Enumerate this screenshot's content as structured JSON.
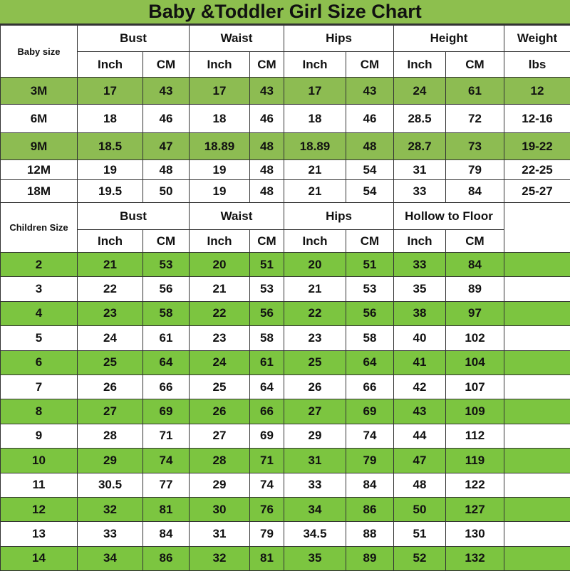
{
  "title": "Baby &Toddler Girl Size Chart",
  "colors": {
    "title_bg": "#8dbf4e",
    "baby_row_green": "#8dbc52",
    "children_row_green": "#7cc540"
  },
  "chart_data": {
    "type": "table",
    "title": "Baby &Toddler Girl Size Chart",
    "baby": {
      "size_label": "Baby size",
      "groups": [
        "Bust",
        "Waist",
        "Hips",
        "Height",
        "Weight"
      ],
      "units": [
        "Inch",
        "CM",
        "Inch",
        "CM",
        "Inch",
        "CM",
        "Inch",
        "CM",
        "lbs"
      ],
      "rows": [
        [
          "3M",
          "17",
          "43",
          "17",
          "43",
          "17",
          "43",
          "24",
          "61",
          "12"
        ],
        [
          "6M",
          "18",
          "46",
          "18",
          "46",
          "18",
          "46",
          "28.5",
          "72",
          "12-16"
        ],
        [
          "9M",
          "18.5",
          "47",
          "18.89",
          "48",
          "18.89",
          "48",
          "28.7",
          "73",
          "19-22"
        ],
        [
          "12M",
          "19",
          "48",
          "19",
          "48",
          "21",
          "54",
          "31",
          "79",
          "22-25"
        ],
        [
          "18M",
          "19.5",
          "50",
          "19",
          "48",
          "21",
          "54",
          "33",
          "84",
          "25-27"
        ]
      ],
      "highlighted_rows": [
        0,
        2
      ]
    },
    "children": {
      "size_label": "Children Size",
      "groups": [
        "Bust",
        "Waist",
        "Hips",
        "Hollow to Floor"
      ],
      "units": [
        "Inch",
        "CM",
        "Inch",
        "CM",
        "Inch",
        "CM",
        "Inch",
        "CM"
      ],
      "rows": [
        [
          "2",
          "21",
          "53",
          "20",
          "51",
          "20",
          "51",
          "33",
          "84"
        ],
        [
          "3",
          "22",
          "56",
          "21",
          "53",
          "21",
          "53",
          "35",
          "89"
        ],
        [
          "4",
          "23",
          "58",
          "22",
          "56",
          "22",
          "56",
          "38",
          "97"
        ],
        [
          "5",
          "24",
          "61",
          "23",
          "58",
          "23",
          "58",
          "40",
          "102"
        ],
        [
          "6",
          "25",
          "64",
          "24",
          "61",
          "25",
          "64",
          "41",
          "104"
        ],
        [
          "7",
          "26",
          "66",
          "25",
          "64",
          "26",
          "66",
          "42",
          "107"
        ],
        [
          "8",
          "27",
          "69",
          "26",
          "66",
          "27",
          "69",
          "43",
          "109"
        ],
        [
          "9",
          "28",
          "71",
          "27",
          "69",
          "29",
          "74",
          "44",
          "112"
        ],
        [
          "10",
          "29",
          "74",
          "28",
          "71",
          "31",
          "79",
          "47",
          "119"
        ],
        [
          "11",
          "30.5",
          "77",
          "29",
          "74",
          "33",
          "84",
          "48",
          "122"
        ],
        [
          "12",
          "32",
          "81",
          "30",
          "76",
          "34",
          "86",
          "50",
          "127"
        ],
        [
          "13",
          "33",
          "84",
          "31",
          "79",
          "34.5",
          "88",
          "51",
          "130"
        ],
        [
          "14",
          "34",
          "86",
          "32",
          "81",
          "35",
          "89",
          "52",
          "132"
        ]
      ],
      "highlighted_rows": [
        0,
        2,
        4,
        6,
        8,
        10,
        12
      ]
    }
  }
}
